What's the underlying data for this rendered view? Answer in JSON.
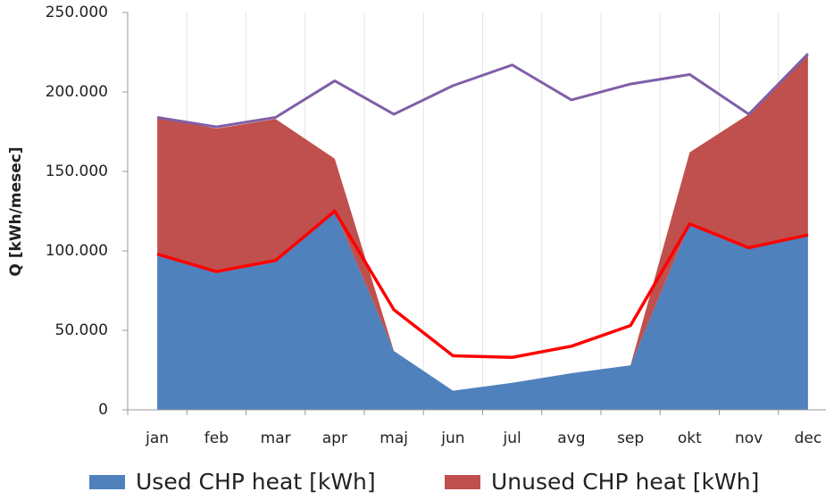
{
  "chart_data": {
    "type": "area",
    "stacked": true,
    "y_label": "Q [kWh/mesec]",
    "categories": [
      "jan",
      "feb",
      "mar",
      "apr",
      "maj",
      "jun",
      "jul",
      "avg",
      "sep",
      "okt",
      "nov",
      "dec"
    ],
    "ylim": [
      0,
      250000
    ],
    "yticks": [
      0,
      {
        "value": 50000,
        "label": "50.000"
      },
      {
        "value": 100000,
        "label": "100.000"
      },
      {
        "value": 150000,
        "label": "150.000"
      },
      {
        "value": 200000,
        "label": "200.000"
      },
      {
        "value": 250000,
        "label": "250.000"
      }
    ],
    "series": [
      {
        "name": "Used CHP heat [kWh]",
        "type": "area",
        "color": "#4f81bd",
        "values": [
          97000,
          86000,
          93000,
          125000,
          37000,
          12000,
          17000,
          23000,
          28000,
          117000,
          102000,
          110000
        ]
      },
      {
        "name": "Unused CHP heat [kWh]",
        "type": "area",
        "color": "#c0504d",
        "values": [
          87000,
          91000,
          90000,
          33000,
          0,
          0,
          0,
          0,
          0,
          45000,
          84000,
          113000
        ]
      },
      {
        "type": "line",
        "color": "#ff0000",
        "width": 3.5,
        "values": [
          98000,
          87000,
          94000,
          125000,
          63000,
          34000,
          33000,
          40000,
          53000,
          117000,
          102000,
          110000
        ]
      },
      {
        "type": "line",
        "color": "#7f5fa8",
        "width": 3,
        "values": [
          184000,
          178000,
          184000,
          207000,
          186000,
          204000,
          217000,
          195000,
          205000,
          211000,
          186000,
          224000
        ]
      }
    ]
  }
}
